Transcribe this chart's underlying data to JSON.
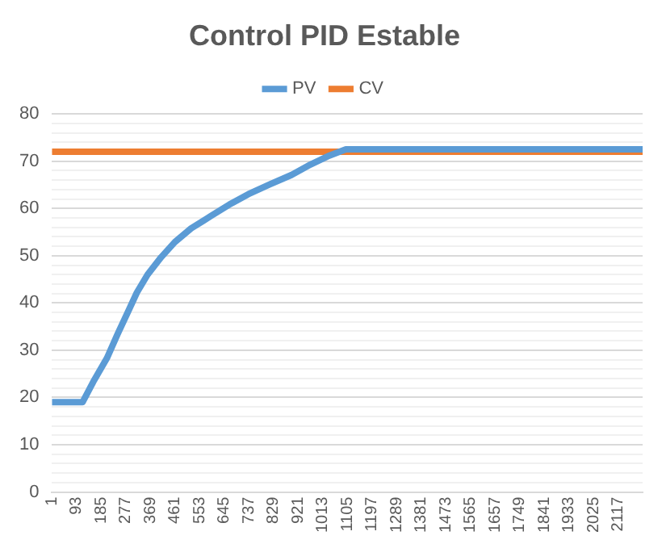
{
  "chart_data": {
    "type": "line",
    "title": "Control PID Estable",
    "legend": "top",
    "grid": "y",
    "marker": "none",
    "line_style": "solid",
    "xlim": [
      1,
      2208
    ],
    "xticks": [
      1,
      93,
      185,
      277,
      369,
      461,
      553,
      645,
      737,
      829,
      921,
      1013,
      1105,
      1197,
      1289,
      1381,
      1473,
      1565,
      1657,
      1749,
      1841,
      1933,
      2025,
      2117
    ],
    "ylim": [
      0,
      80
    ],
    "yticks": [
      0,
      {
        "value": 2,
        "label": null
      },
      {
        "value": 4,
        "label": null
      },
      {
        "value": 6,
        "label": null
      },
      {
        "value": 8,
        "label": null
      },
      10,
      {
        "value": 12,
        "label": null
      },
      {
        "value": 14,
        "label": null
      },
      {
        "value": 16,
        "label": null
      },
      {
        "value": 18,
        "label": null
      },
      20,
      {
        "value": 22,
        "label": null
      },
      {
        "value": 24,
        "label": null
      },
      {
        "value": 26,
        "label": null
      },
      {
        "value": 28,
        "label": null
      },
      30,
      {
        "value": 32,
        "label": null
      },
      {
        "value": 34,
        "label": null
      },
      {
        "value": 36,
        "label": null
      },
      {
        "value": 38,
        "label": null
      },
      40,
      {
        "value": 42,
        "label": null
      },
      {
        "value": 44,
        "label": null
      },
      {
        "value": 46,
        "label": null
      },
      {
        "value": 48,
        "label": null
      },
      50,
      {
        "value": 52,
        "label": null
      },
      {
        "value": 54,
        "label": null
      },
      {
        "value": 56,
        "label": null
      },
      {
        "value": 58,
        "label": null
      },
      60,
      {
        "value": 62,
        "label": null
      },
      {
        "value": 64,
        "label": null
      },
      {
        "value": 66,
        "label": null
      },
      {
        "value": 68,
        "label": null
      },
      70,
      {
        "value": 72,
        "label": null
      },
      {
        "value": 74,
        "label": null
      },
      {
        "value": 76,
        "label": null
      },
      {
        "value": 78,
        "label": null
      },
      80
    ],
    "series": [
      {
        "name": "PV",
        "color": "#5b9bd5",
        "x": [
          1,
          115,
          155,
          206,
          246,
          287,
          318,
          358,
          409,
          460,
          521,
          592,
          663,
          734,
          815,
          896,
          967,
          1038,
          1099,
          2208
        ],
        "values": [
          19,
          19,
          23.3,
          28.3,
          33.4,
          38.4,
          42.2,
          46,
          49.7,
          52.9,
          55.8,
          58.3,
          60.8,
          63,
          65.1,
          67.1,
          69.3,
          71.2,
          72.5,
          72.5
        ]
      },
      {
        "name": "CV",
        "color": "#ed7d31",
        "x": [
          1,
          2208
        ],
        "values": [
          72,
          72
        ]
      }
    ]
  }
}
